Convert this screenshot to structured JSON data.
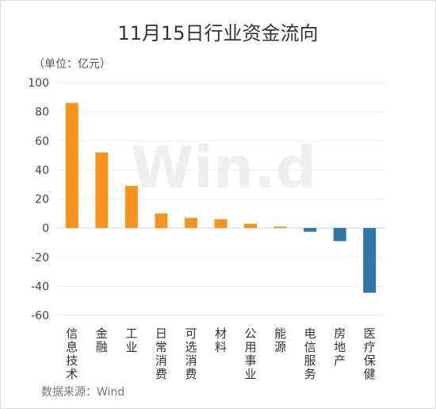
{
  "chart_data": {
    "type": "bar",
    "title": "11月15日行业资金流向",
    "unit_label": "（单位：亿元）",
    "source_label": "数据来源：Wind",
    "watermark": "Win.d",
    "ylim": [
      -60,
      100
    ],
    "yticks": [
      100,
      80,
      60,
      40,
      20,
      0,
      -20,
      -40,
      -60
    ],
    "grid": true,
    "categories": [
      "信息技术",
      "金融",
      "工业",
      "日常消费",
      "可选消费",
      "材料",
      "公用事业",
      "能源",
      "电信服务",
      "房地产",
      "医疗保健"
    ],
    "values": [
      86,
      52,
      29,
      10,
      7,
      6,
      3,
      1,
      -2.5,
      -9,
      -44.5
    ],
    "colors": {
      "positive": "#F7931E",
      "negative": "#2E75A8"
    }
  }
}
